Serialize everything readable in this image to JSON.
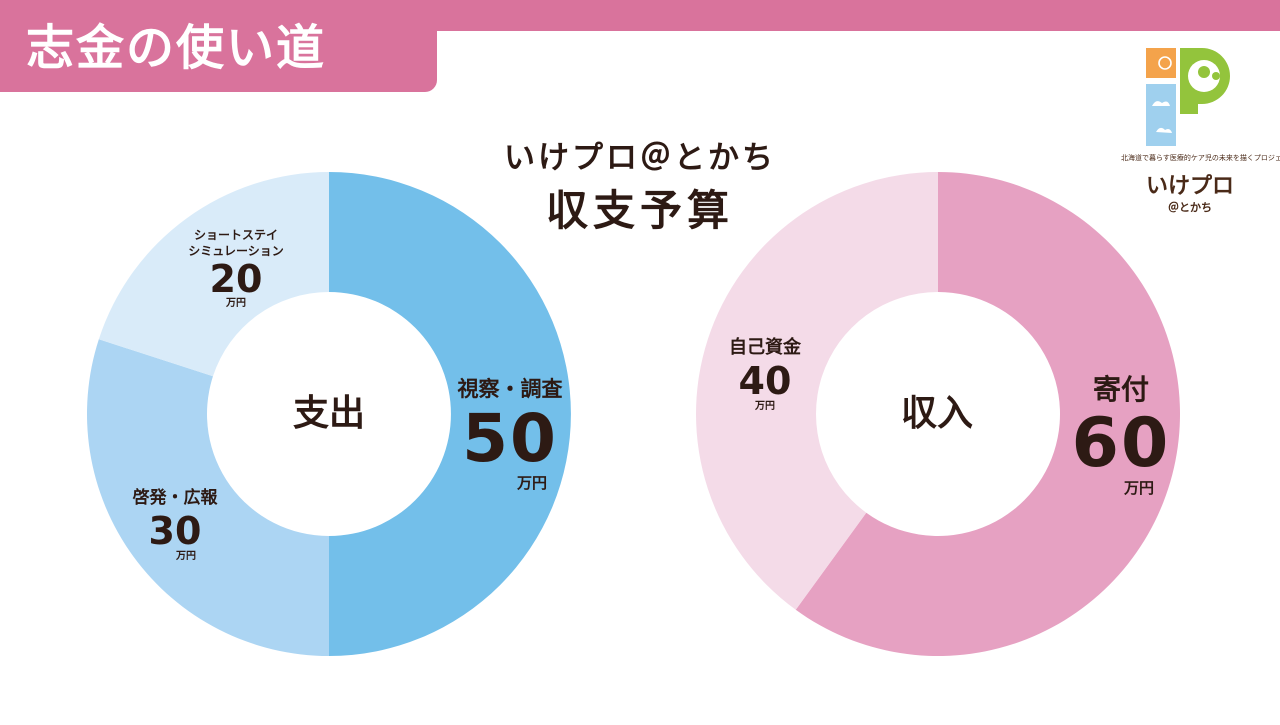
{
  "page": {
    "title": "志金の使い道",
    "heading_line1": "いけプロ＠とかち",
    "heading_line2": "収支予算"
  },
  "logo": {
    "tagline": "北海道で暮らす医療的ケア児の未来を描くプロジェクト",
    "name": "いけプロ",
    "sub": "＠とかち"
  },
  "colors": {
    "accent": "#d9739c",
    "text": "#2d1a14",
    "expense": [
      "#73bfea",
      "#acd5f3",
      "#d9ebf9"
    ],
    "income": [
      "#e6a1c2",
      "#f4dbe8"
    ]
  },
  "chart_data": [
    {
      "type": "donut",
      "center_label": "支出",
      "unit": "万円",
      "slices": [
        {
          "label": "視察・調査",
          "value": 50
        },
        {
          "label": "啓発・広報",
          "value": 30
        },
        {
          "label": "ショートステイ\nシミュレーション",
          "value": 20
        }
      ]
    },
    {
      "type": "donut",
      "center_label": "収入",
      "unit": "万円",
      "slices": [
        {
          "label": "寄付",
          "value": 60
        },
        {
          "label": "自己資金",
          "value": 40
        }
      ]
    }
  ]
}
